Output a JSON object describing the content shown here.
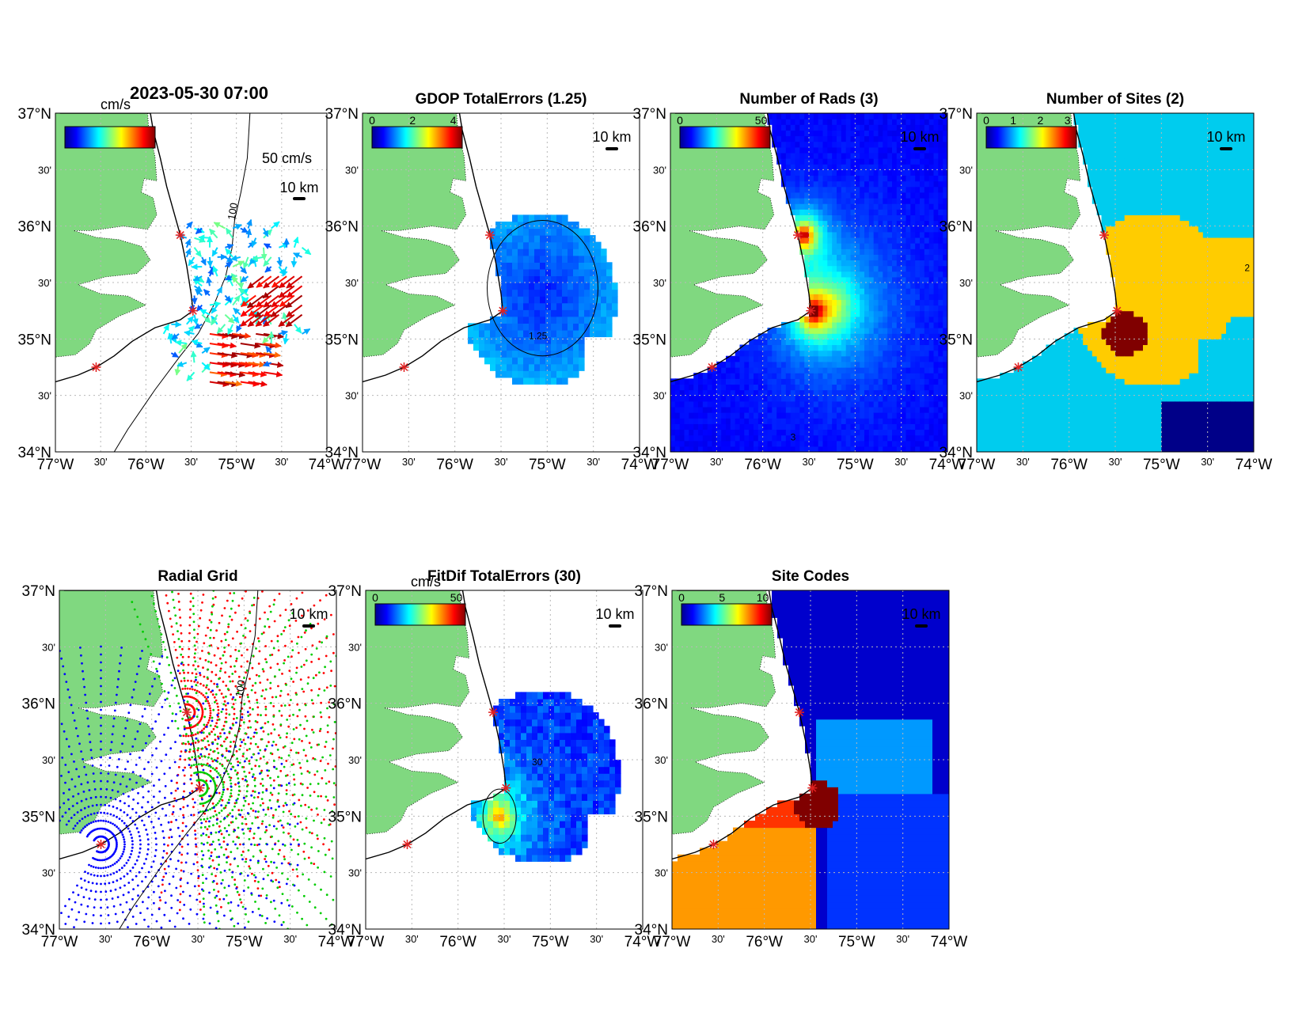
{
  "figure": {
    "background": "#ffffff"
  },
  "map": {
    "lon_range": [
      -77,
      -74
    ],
    "lat_range": [
      34,
      37
    ],
    "x_ticks": [
      {
        "lon": -77,
        "label": "77°W",
        "major": true
      },
      {
        "lon": -76.5,
        "label": "30'",
        "major": false
      },
      {
        "lon": -76,
        "label": "76°W",
        "major": true
      },
      {
        "lon": -75.5,
        "label": "30'",
        "major": false
      },
      {
        "lon": -75,
        "label": "75°W",
        "major": true
      },
      {
        "lon": -74.5,
        "label": "30'",
        "major": false
      },
      {
        "lon": -74,
        "label": "74°W",
        "major": true
      }
    ],
    "y_ticks": [
      {
        "lat": 37,
        "label": "37°N",
        "major": true
      },
      {
        "lat": 36.5,
        "label": "30'",
        "major": false
      },
      {
        "lat": 36,
        "label": "36°N",
        "major": true
      },
      {
        "lat": 35.5,
        "label": "30'",
        "major": false
      },
      {
        "lat": 35,
        "label": "35°N",
        "major": true
      },
      {
        "lat": 34.5,
        "label": "30'",
        "major": false
      },
      {
        "lat": 34,
        "label": "34°N",
        "major": true
      }
    ],
    "land_color": "#80d880",
    "coast_color": "#000000",
    "site_marker_color": "#e02020",
    "sites": [
      {
        "lon": -75.62,
        "lat": 35.92
      },
      {
        "lon": -75.48,
        "lat": 35.25
      },
      {
        "lon": -76.55,
        "lat": 34.75
      }
    ],
    "scale_bar": "10 km",
    "isobath_label": "100"
  },
  "panels": [
    {
      "id": "p1",
      "title": "2023-05-30 07:00",
      "colorbar": {
        "unit_label": "cm/s",
        "ticks": []
      },
      "reference_arrow": "50 cm/s"
    },
    {
      "id": "p2",
      "title": "GDOP TotalErrors (1.25)",
      "colorbar": {
        "ticks": [
          "0",
          "2",
          "4"
        ]
      },
      "contour_label": "1.25"
    },
    {
      "id": "p3",
      "title": "Number of Rads (3)",
      "colorbar": {
        "ticks": [
          "0",
          "50"
        ]
      },
      "contour_label": "3"
    },
    {
      "id": "p4",
      "title": "Number of Sites (2)",
      "colorbar": {
        "ticks": [
          "0",
          "1",
          "2",
          "3"
        ]
      },
      "contour_label": "2"
    },
    {
      "id": "p5",
      "title": "Radial Grid"
    },
    {
      "id": "p6",
      "title": "FitDif TotalErrors (30)",
      "colorbar": {
        "unit_label": "cm/s",
        "ticks": [
          "0",
          "50"
        ]
      },
      "contour_label": "30"
    },
    {
      "id": "p7",
      "title": "Site Codes",
      "colorbar": {
        "ticks": [
          "0",
          "5",
          "10"
        ]
      }
    }
  ],
  "chart_data": [
    {
      "type": "heatmap",
      "title": "2023-05-30 07:00",
      "subtype": "total current vectors",
      "colorbar_unit": "cm/s",
      "reference_vector": "50 cm/s",
      "xlim": [
        -77,
        -74
      ],
      "ylim": [
        34,
        37
      ]
    },
    {
      "type": "heatmap",
      "title": "GDOP TotalErrors (1.25)",
      "colorbar_range": [
        0,
        5
      ],
      "colorbar_ticks": [
        0,
        2,
        4
      ],
      "contour_level": 1.25,
      "xlim": [
        -77,
        -74
      ],
      "ylim": [
        34,
        37
      ]
    },
    {
      "type": "heatmap",
      "title": "Number of Rads (3)",
      "colorbar_range": [
        0,
        60
      ],
      "colorbar_ticks": [
        0,
        50
      ],
      "contour_level": 3,
      "xlim": [
        -77,
        -74
      ],
      "ylim": [
        34,
        37
      ]
    },
    {
      "type": "heatmap",
      "title": "Number of Sites (2)",
      "colorbar_range": [
        0,
        3
      ],
      "colorbar_ticks": [
        0,
        1,
        2,
        3
      ],
      "contour_level": 2,
      "xlim": [
        -77,
        -74
      ],
      "ylim": [
        34,
        37
      ]
    },
    {
      "type": "scatter",
      "title": "Radial Grid",
      "series": [
        {
          "name": "northern site",
          "color": "#ff0000"
        },
        {
          "name": "central site",
          "color": "#00cc00"
        },
        {
          "name": "southern site",
          "color": "#0000ff"
        }
      ],
      "xlim": [
        -77,
        -74
      ],
      "ylim": [
        34,
        37
      ]
    },
    {
      "type": "heatmap",
      "title": "FitDif TotalErrors (30)",
      "colorbar_unit": "cm/s",
      "colorbar_range": [
        0,
        60
      ],
      "colorbar_ticks": [
        0,
        50
      ],
      "contour_level": 30,
      "xlim": [
        -77,
        -74
      ],
      "ylim": [
        34,
        37
      ]
    },
    {
      "type": "heatmap",
      "title": "Site Codes",
      "colorbar_range": [
        0,
        12
      ],
      "colorbar_ticks": [
        0,
        5,
        10
      ],
      "xlim": [
        -77,
        -74
      ],
      "ylim": [
        34,
        37
      ]
    }
  ]
}
